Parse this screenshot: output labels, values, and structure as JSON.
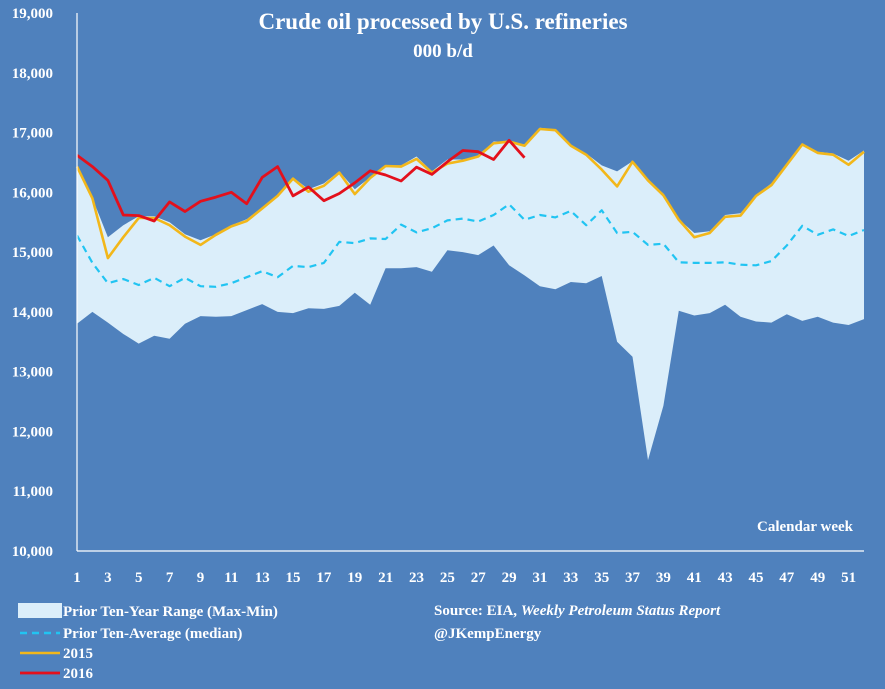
{
  "colors": {
    "background": "#4f81bd",
    "range_fill": "#dbeefa",
    "median": "#21c4f2",
    "y2015": "#f2b71a",
    "y2016": "#e3101c",
    "axis": "#ffffff"
  },
  "chart_data": {
    "type": "line",
    "title": "Crude oil processed by U.S. refineries",
    "subtitle": "000 b/d",
    "xlabel": "Calendar week",
    "ylabel": "",
    "xlim": [
      1,
      52
    ],
    "ylim": [
      10000,
      19000
    ],
    "y_ticks": [
      "10,000",
      "11,000",
      "12,000",
      "13,000",
      "14,000",
      "15,000",
      "16,000",
      "17,000",
      "18,000",
      "19,000"
    ],
    "y_tick_values": [
      10000,
      11000,
      12000,
      13000,
      14000,
      15000,
      16000,
      17000,
      18000,
      19000
    ],
    "x_ticks": [
      "1",
      "3",
      "5",
      "7",
      "9",
      "11",
      "13",
      "15",
      "17",
      "19",
      "21",
      "23",
      "25",
      "27",
      "29",
      "31",
      "33",
      "35",
      "37",
      "39",
      "41",
      "43",
      "45",
      "47",
      "49",
      "51"
    ],
    "x_tick_values": [
      1,
      3,
      5,
      7,
      9,
      11,
      13,
      15,
      17,
      19,
      21,
      23,
      25,
      27,
      29,
      31,
      33,
      35,
      37,
      39,
      41,
      43,
      45,
      47,
      49,
      51
    ],
    "grid": false,
    "weeks": [
      1,
      2,
      3,
      4,
      5,
      6,
      7,
      8,
      9,
      10,
      11,
      12,
      13,
      14,
      15,
      16,
      17,
      18,
      19,
      20,
      21,
      22,
      23,
      24,
      25,
      26,
      27,
      28,
      29,
      30,
      31,
      32,
      33,
      34,
      35,
      36,
      37,
      38,
      39,
      40,
      41,
      42,
      43,
      44,
      45,
      46,
      47,
      48,
      49,
      50,
      51,
      52
    ],
    "range_max": [
      16450,
      15900,
      15250,
      15450,
      15600,
      15600,
      15500,
      15300,
      15200,
      15300,
      15450,
      15550,
      15750,
      15950,
      16250,
      16050,
      16150,
      16350,
      16050,
      16250,
      16450,
      16450,
      16600,
      16350,
      16550,
      16550,
      16600,
      16850,
      16850,
      16800,
      17080,
      17050,
      16800,
      16650,
      16450,
      16350,
      16520,
      16200,
      15980,
      15550,
      15320,
      15350,
      15620,
      15650,
      15950,
      16150,
      16450,
      16820,
      16680,
      16650,
      16530,
      16700
    ],
    "range_min": [
      13800,
      14000,
      13820,
      13630,
      13470,
      13600,
      13550,
      13800,
      13930,
      13920,
      13930,
      14030,
      14130,
      14000,
      13980,
      14060,
      14050,
      14100,
      14320,
      14120,
      14730,
      14730,
      14750,
      14670,
      15030,
      15000,
      14950,
      15110,
      14780,
      14610,
      14430,
      14380,
      14500,
      14480,
      14600,
      13500,
      13250,
      11520,
      12430,
      14020,
      13940,
      13980,
      14120,
      13920,
      13840,
      13820,
      13960,
      13850,
      13920,
      13820,
      13780,
      13880
    ],
    "series": [
      {
        "name": "Prior Ten-Year Range (Max-Min)",
        "kind": "band"
      },
      {
        "name": "Prior Ten-Average (median)",
        "values": [
          15280,
          14820,
          14480,
          14550,
          14450,
          14570,
          14430,
          14570,
          14430,
          14420,
          14480,
          14580,
          14680,
          14580,
          14770,
          14750,
          14820,
          15170,
          15150,
          15230,
          15220,
          15460,
          15330,
          15400,
          15530,
          15560,
          15510,
          15620,
          15800,
          15540,
          15620,
          15580,
          15690,
          15450,
          15700,
          15320,
          15340,
          15120,
          15140,
          14830,
          14820,
          14820,
          14830,
          14790,
          14780,
          14850,
          15110,
          15440,
          15290,
          15380,
          15270,
          15370
        ]
      },
      {
        "name": "2015",
        "values": [
          16430,
          15900,
          14900,
          15250,
          15570,
          15570,
          15450,
          15260,
          15120,
          15290,
          15430,
          15520,
          15730,
          15940,
          16230,
          16010,
          16110,
          16330,
          15970,
          16240,
          16440,
          16430,
          16560,
          16330,
          16480,
          16530,
          16600,
          16820,
          16850,
          16780,
          17060,
          17040,
          16780,
          16630,
          16380,
          16100,
          16510,
          16200,
          15950,
          15540,
          15250,
          15320,
          15590,
          15610,
          15940,
          16120,
          16460,
          16800,
          16660,
          16630,
          16460,
          16680
        ]
      },
      {
        "name": "2016",
        "values": [
          16620,
          16430,
          16200,
          15620,
          15610,
          15520,
          15840,
          15680,
          15850,
          15920,
          16000,
          15810,
          16250,
          16430,
          15940,
          16090,
          15860,
          15980,
          16160,
          16360,
          16290,
          16190,
          16420,
          16300,
          16510,
          16700,
          16680,
          16550,
          16870,
          16580
        ]
      }
    ],
    "legend_placement": "bottom-left"
  },
  "legend": [
    {
      "label": "Prior Ten-Year Range (Max-Min)"
    },
    {
      "label": "Prior Ten-Average (median)"
    },
    {
      "label": "2015"
    },
    {
      "label": "2016"
    }
  ],
  "source": {
    "prefix": "Source: EIA, ",
    "publication": "Weekly Petroleum Status Report",
    "handle": "@JKempEnergy"
  }
}
